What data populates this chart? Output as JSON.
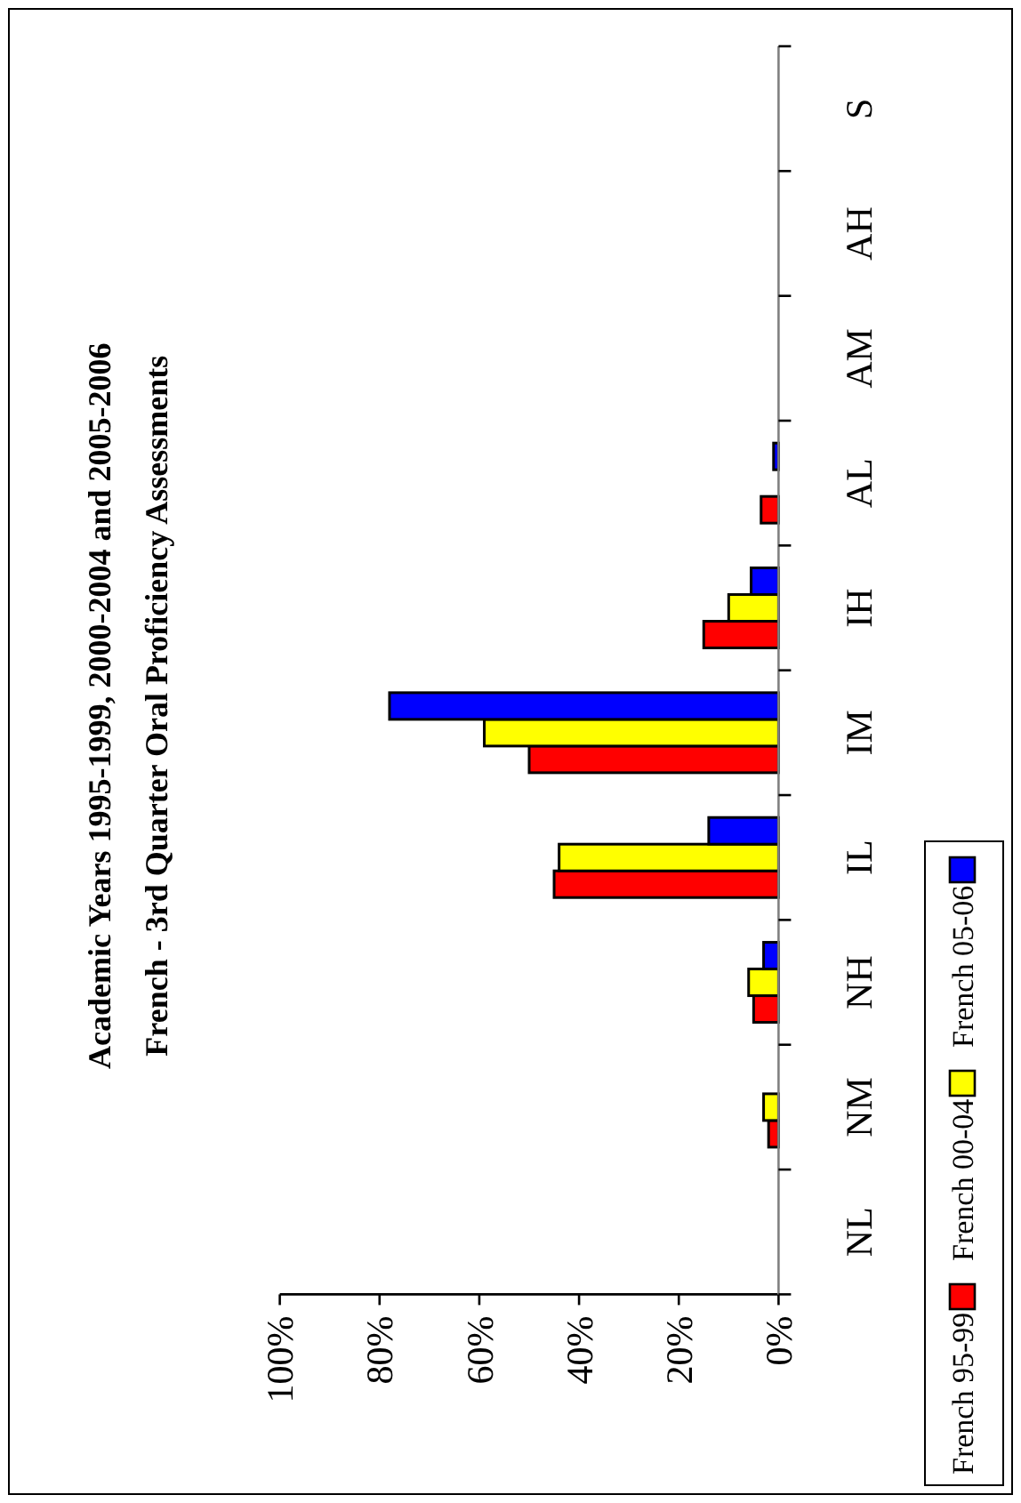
{
  "chart_data": {
    "type": "bar",
    "orientation": "horizontal",
    "title": "Academic Years 1995-1999, 2000-2004 and 2005-2006",
    "subtitle": "French - 3rd Quarter Oral Proficiency Assessments",
    "categories": [
      "S",
      "AH",
      "AM",
      "AL",
      "IH",
      "IM",
      "IL",
      "NH",
      "NM",
      "NL"
    ],
    "series": [
      {
        "name": "French 95-99",
        "color": "#ff0000",
        "values": [
          0,
          0,
          0,
          3.5,
          15,
          50,
          45,
          5,
          2,
          0
        ]
      },
      {
        "name": "French 00-04",
        "color": "#ffff00",
        "values": [
          0,
          0,
          0,
          0,
          10,
          59,
          44,
          6,
          3,
          0
        ]
      },
      {
        "name": "French 05-06",
        "color": "#0000ff",
        "values": [
          0,
          0,
          0,
          1,
          5.5,
          78,
          14,
          3,
          0,
          0
        ]
      }
    ],
    "xlim": [
      100,
      0
    ],
    "xticks": [
      {
        "value": 100,
        "label": "100%"
      },
      {
        "value": 80,
        "label": "80%"
      },
      {
        "value": 60,
        "label": "60%"
      },
      {
        "value": 40,
        "label": "40%"
      },
      {
        "value": 20,
        "label": "20%"
      },
      {
        "value": 0,
        "label": "0%"
      }
    ],
    "legend": "right",
    "grid": false
  }
}
